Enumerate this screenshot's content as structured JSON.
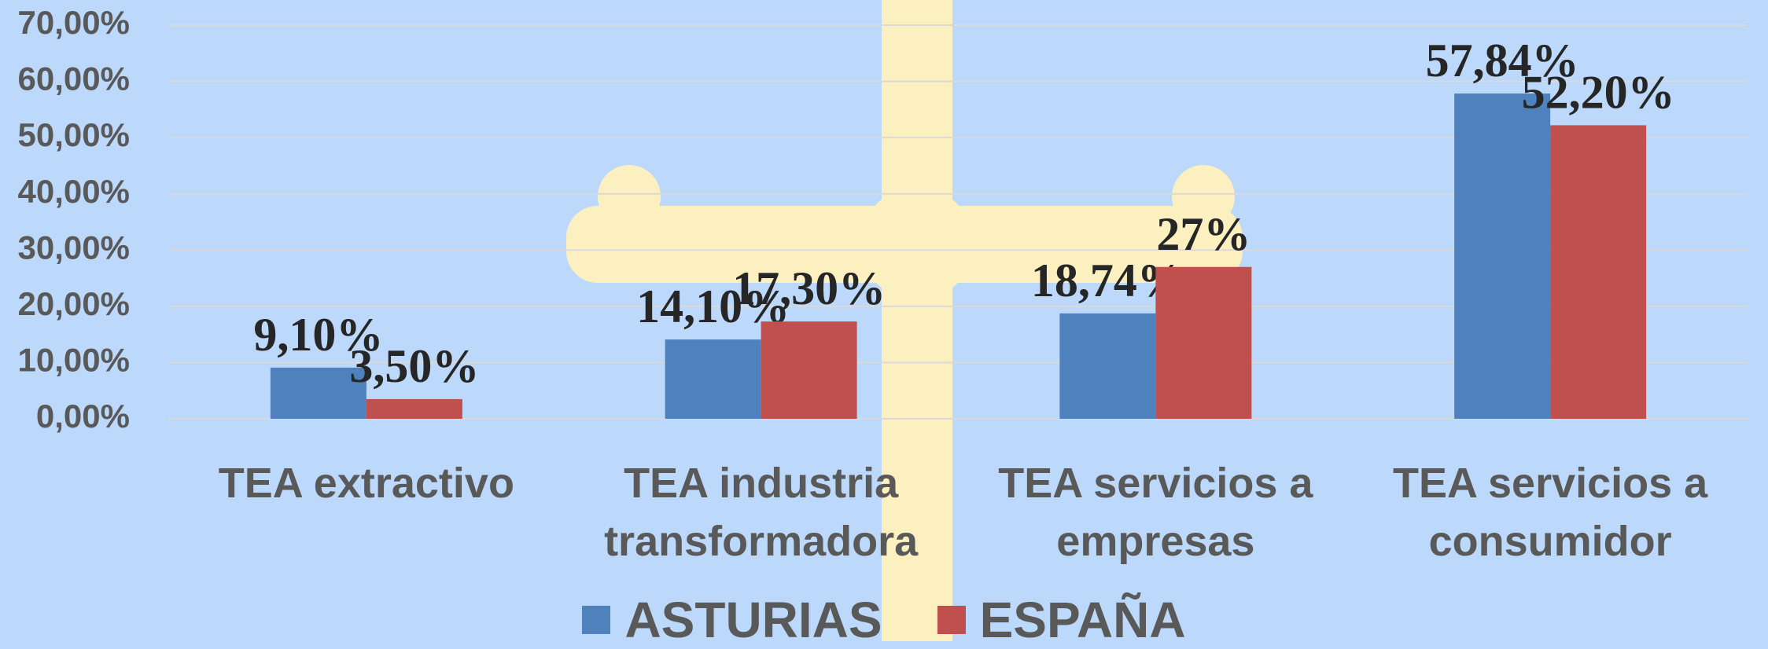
{
  "chart_data": {
    "type": "bar",
    "categories": [
      "TEA extractivo",
      "TEA industria transformadora",
      "TEA servicios a empresas",
      "TEA servicios a consumidor"
    ],
    "series": [
      {
        "name": "ASTURIAS",
        "color": "#4f81bd",
        "values": [
          9.1,
          14.1,
          18.74,
          57.84
        ],
        "value_labels": [
          "9,10%",
          "14,10%",
          "18,74%",
          "57,84%"
        ]
      },
      {
        "name": "ESPAÑA",
        "color": "#c0504d",
        "values": [
          3.5,
          17.3,
          27,
          52.2
        ],
        "value_labels": [
          "3,50%",
          "17,30%",
          "27%",
          "52,20%"
        ]
      }
    ],
    "ylim": [
      0,
      70
    ],
    "yticks": [
      {
        "value": 0,
        "label": "0,00%"
      },
      {
        "value": 10,
        "label": "10,00%"
      },
      {
        "value": 20,
        "label": "20,00%"
      },
      {
        "value": 30,
        "label": "30,00%"
      },
      {
        "value": 40,
        "label": "40,00%"
      },
      {
        "value": 50,
        "label": "50,00%"
      },
      {
        "value": 60,
        "label": "60,00%"
      },
      {
        "value": 70,
        "label": "70,00%"
      }
    ],
    "grid": true,
    "legend": "bottom"
  }
}
